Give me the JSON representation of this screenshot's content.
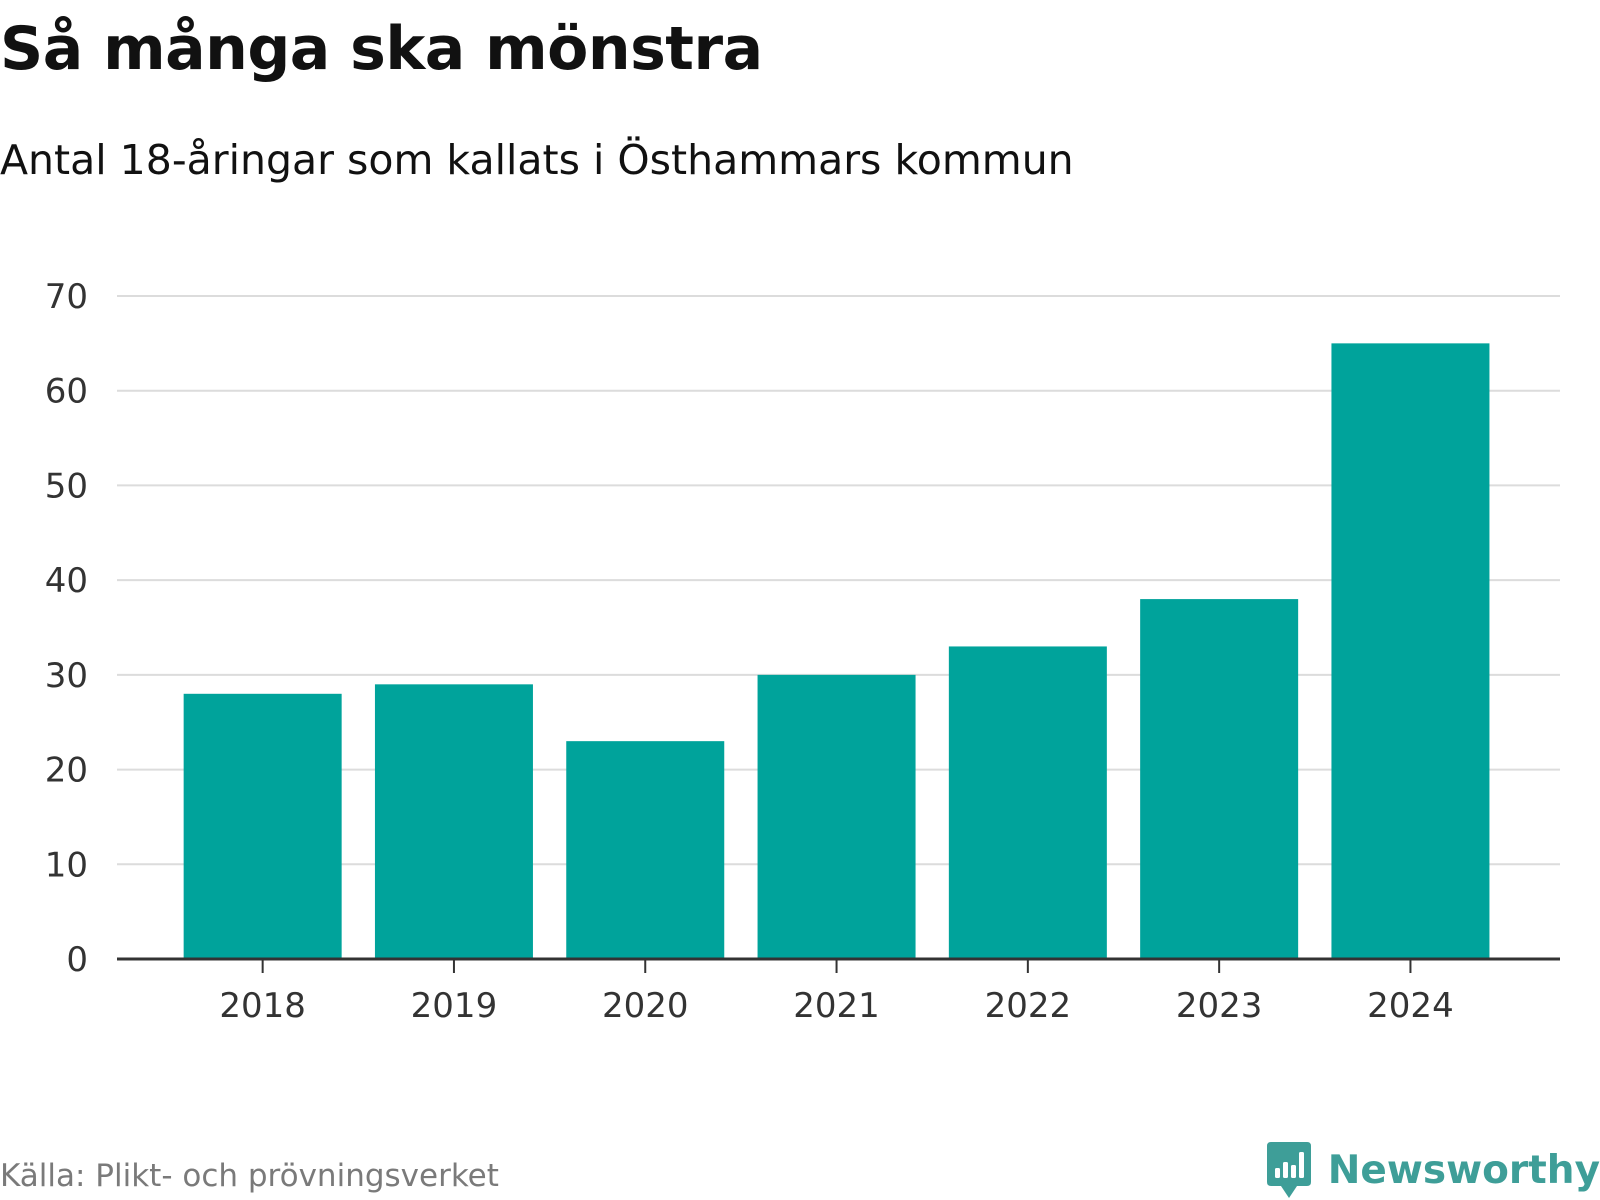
{
  "header": {
    "title": "Så många ska mönstra",
    "subtitle": "Antal 18-åringar som kallats i Östhammars kommun"
  },
  "footer": {
    "source": "Källa: Plikt- och prövningsverket",
    "brand": "Newsworthy",
    "brand_icon": "bar-chart-speech-bubble-icon"
  },
  "colors": {
    "bar": "#00a39b",
    "grid": "#dcdcdc",
    "axis": "#333333",
    "tick_text": "#333333",
    "brand": "#3e9e98"
  },
  "chart_data": {
    "type": "bar",
    "title": "Så många ska mönstra",
    "subtitle": "Antal 18-åringar som kallats i Östhammars kommun",
    "xlabel": "",
    "ylabel": "",
    "categories": [
      "2018",
      "2019",
      "2020",
      "2021",
      "2022",
      "2023",
      "2024"
    ],
    "values": [
      28,
      29,
      23,
      30,
      33,
      38,
      65
    ],
    "ylim": [
      0,
      70
    ],
    "yticks": [
      0,
      10,
      20,
      30,
      40,
      50,
      60,
      70
    ],
    "grid": true,
    "legend": "none"
  }
}
